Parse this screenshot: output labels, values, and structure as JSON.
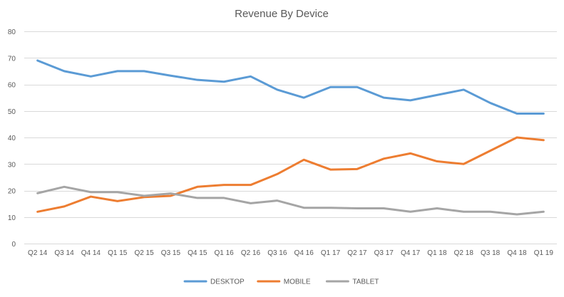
{
  "chart_data": {
    "type": "line",
    "title": "Revenue By Device",
    "xlabel": "",
    "ylabel": "",
    "categories": [
      "Q2 14",
      "Q3 14",
      "Q4 14",
      "Q1 15",
      "Q2 15",
      "Q3 15",
      "Q4 15",
      "Q1 16",
      "Q2 16",
      "Q3 16",
      "Q4 16",
      "Q1 17",
      "Q2 17",
      "Q3 17",
      "Q4 17",
      "Q1 18",
      "Q2 18",
      "Q3 18",
      "Q4 18",
      "Q1 19"
    ],
    "ylim": [
      0,
      80
    ],
    "yticks": [
      0,
      10,
      20,
      30,
      40,
      50,
      60,
      70,
      80
    ],
    "grid": true,
    "legend_position": "bottom",
    "series": [
      {
        "name": "DESKTOP",
        "color": "#5b9bd5",
        "values": [
          69,
          65,
          63,
          65,
          65,
          63.3,
          61.7,
          61,
          63,
          58,
          55,
          59,
          59,
          55,
          54,
          56,
          58,
          53,
          49,
          49
        ]
      },
      {
        "name": "MOBILE",
        "color": "#ed7d31",
        "values": [
          12,
          14,
          17.7,
          16,
          17.5,
          18,
          21.4,
          22.1,
          22.1,
          26.2,
          31.6,
          27.9,
          28.1,
          32,
          34,
          31,
          30,
          35,
          40,
          39
        ]
      },
      {
        "name": "TABLET",
        "color": "#a5a5a5",
        "values": [
          19,
          21.4,
          19.4,
          19.4,
          18,
          18.9,
          17.2,
          17.2,
          15.2,
          16.2,
          13.5,
          13.5,
          13.3,
          13.3,
          12,
          13.3,
          12,
          12,
          11,
          12
        ]
      }
    ]
  }
}
